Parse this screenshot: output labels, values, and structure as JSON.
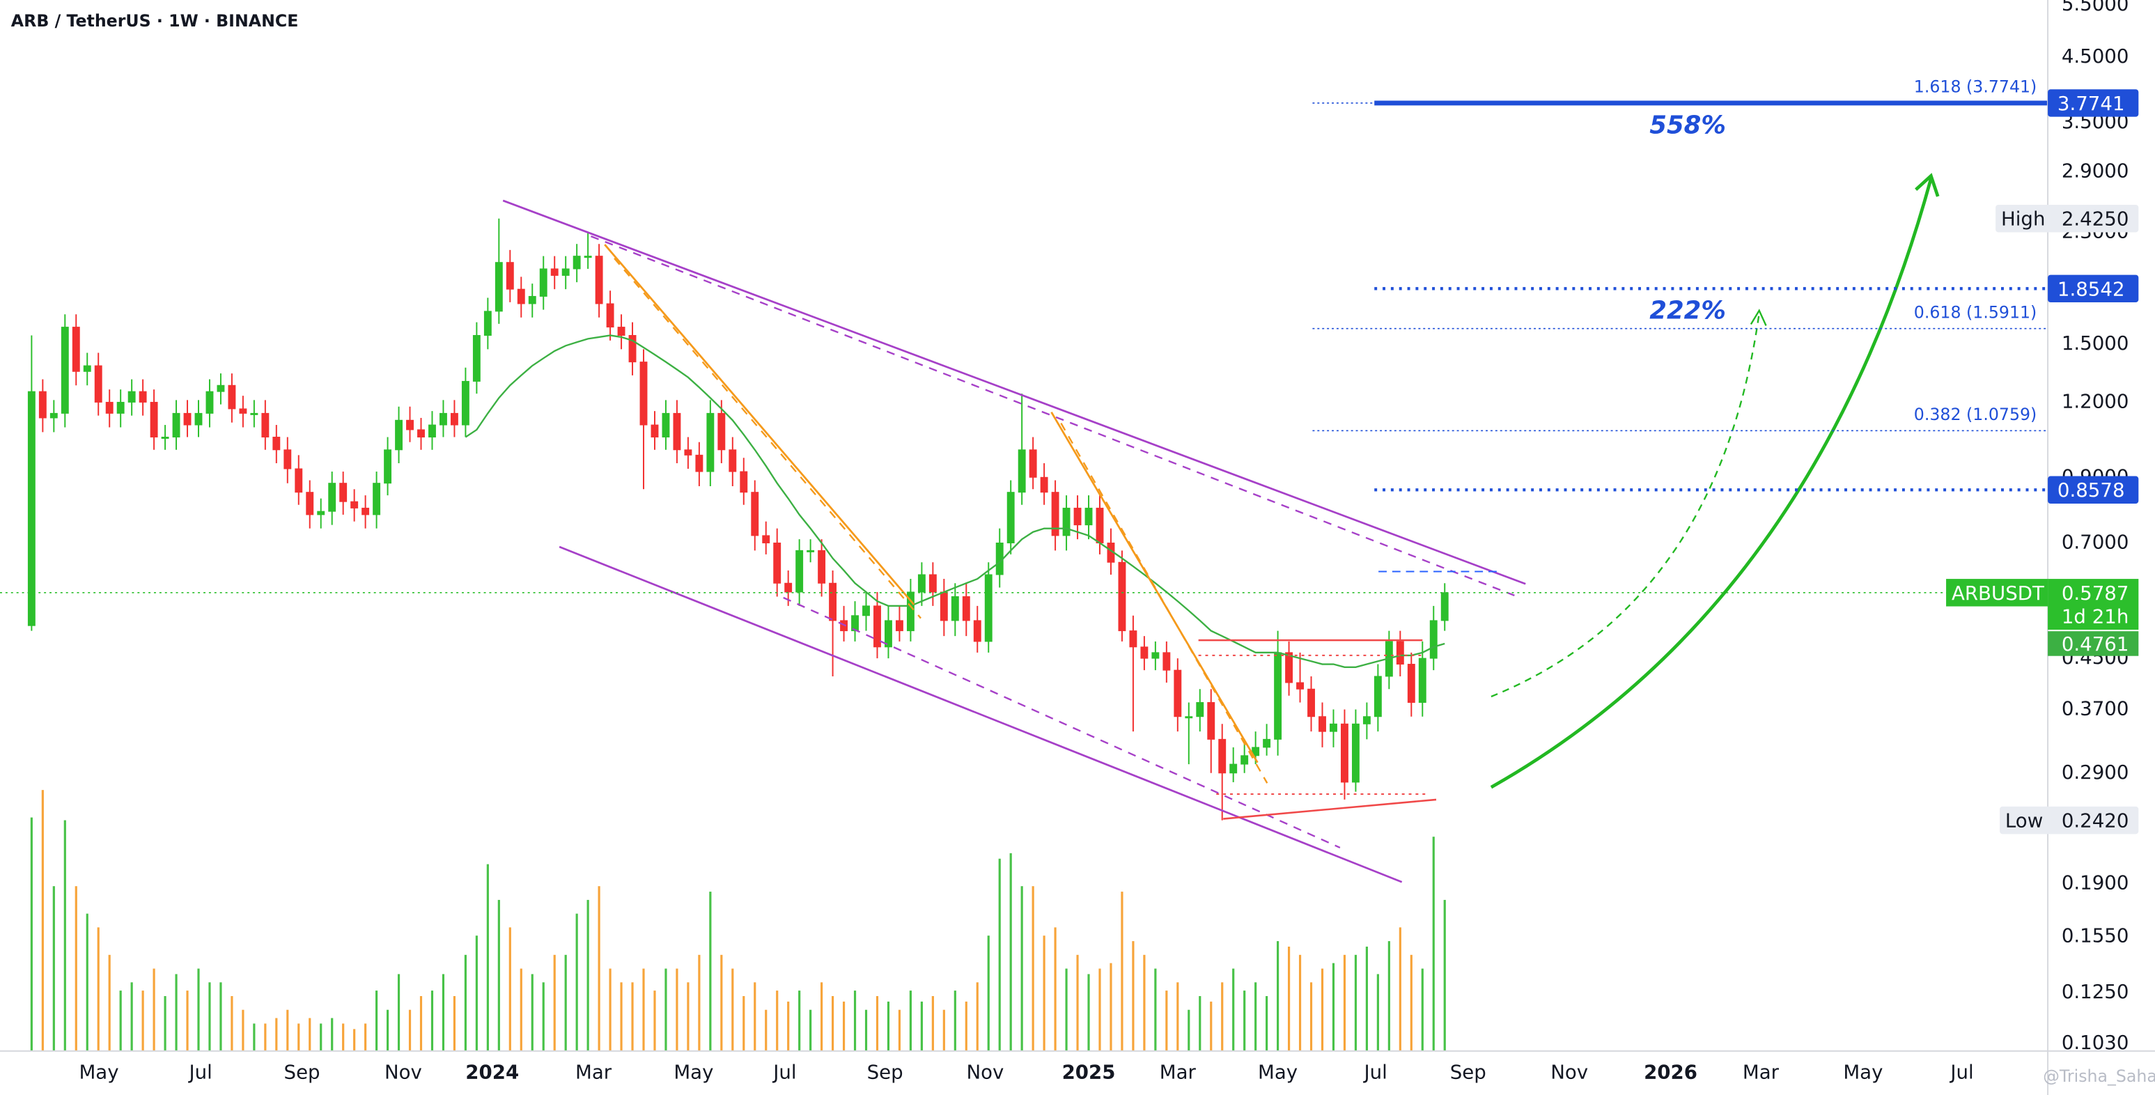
{
  "chart_data": {
    "type": "candlestick",
    "title": "ARB / TetherUS · 1W · BINANCE",
    "log_scale": true,
    "grid": false,
    "up_color": "#2cbf2c",
    "down_color": "#f23030",
    "volume_up_color": "#48c248",
    "volume_down_color": "#f7a43a",
    "ma_color": "#3cb043",
    "level_color": "#1f4fd8",
    "xlim": [
      -2.84,
      181.2
    ],
    "ylim": [
      0.1,
      5.6
    ],
    "volume_lim": [
      0,
      100
    ],
    "xticks": [
      {
        "value": 6.05,
        "label": "May"
      },
      {
        "value": 15.2,
        "label": "Jul"
      },
      {
        "value": 24.3,
        "label": "Sep"
      },
      {
        "value": 33.4,
        "label": "Nov"
      },
      {
        "value": 41.4,
        "label": "2024"
      },
      {
        "value": 50.5,
        "label": "Mar"
      },
      {
        "value": 59.5,
        "label": "May"
      },
      {
        "value": 67.7,
        "label": "Jul"
      },
      {
        "value": 76.7,
        "label": "Sep"
      },
      {
        "value": 85.7,
        "label": "Nov"
      },
      {
        "value": 95.0,
        "label": "2025"
      },
      {
        "value": 103.0,
        "label": "Mar"
      },
      {
        "value": 112.0,
        "label": "May"
      },
      {
        "value": 120.8,
        "label": "Jul"
      },
      {
        "value": 129.1,
        "label": "Sep"
      },
      {
        "value": 138.2,
        "label": "Nov"
      },
      {
        "value": 147.3,
        "label": "2026"
      },
      {
        "value": 155.4,
        "label": "Mar"
      },
      {
        "value": 164.6,
        "label": "May"
      },
      {
        "value": 173.5,
        "label": "Jul"
      }
    ],
    "yticks": [
      {
        "value": 5.5,
        "label": "5.5000"
      },
      {
        "value": 4.5,
        "label": "4.5000"
      },
      {
        "value": 3.5,
        "label": "3.5000"
      },
      {
        "value": 2.9,
        "label": "2.9000"
      },
      {
        "value": 2.3,
        "label": "2.3000"
      },
      {
        "value": 1.5,
        "label": "1.5000"
      },
      {
        "value": 1.2,
        "label": "1.2000"
      },
      {
        "value": 0.9,
        "label": "0.9000"
      },
      {
        "value": 0.7,
        "label": "0.7000"
      },
      {
        "value": 0.45,
        "label": "0.4500"
      },
      {
        "value": 0.37,
        "label": "0.3700"
      },
      {
        "value": 0.29,
        "label": "0.2900"
      },
      {
        "value": 0.19,
        "label": "0.1900"
      },
      {
        "value": 0.155,
        "label": "0.1550"
      },
      {
        "value": 0.125,
        "label": "0.1250"
      },
      {
        "value": 0.103,
        "label": "0.1030"
      }
    ],
    "candles": [
      [
        0.51,
        1.55,
        0.5,
        1.25
      ],
      [
        1.25,
        1.31,
        1.07,
        1.13
      ],
      [
        1.13,
        1.21,
        1.07,
        1.15
      ],
      [
        1.15,
        1.68,
        1.09,
        1.6
      ],
      [
        1.6,
        1.68,
        1.28,
        1.35
      ],
      [
        1.35,
        1.45,
        1.28,
        1.38
      ],
      [
        1.38,
        1.45,
        1.14,
        1.2
      ],
      [
        1.2,
        1.26,
        1.09,
        1.15
      ],
      [
        1.15,
        1.26,
        1.09,
        1.2
      ],
      [
        1.2,
        1.31,
        1.14,
        1.25
      ],
      [
        1.25,
        1.31,
        1.14,
        1.2
      ],
      [
        1.2,
        1.26,
        1.0,
        1.05
      ],
      [
        1.05,
        1.1,
        1.0,
        1.05
      ],
      [
        1.05,
        1.21,
        1.0,
        1.15
      ],
      [
        1.15,
        1.21,
        1.05,
        1.1
      ],
      [
        1.1,
        1.21,
        1.05,
        1.15
      ],
      [
        1.15,
        1.31,
        1.09,
        1.25
      ],
      [
        1.25,
        1.34,
        1.19,
        1.28
      ],
      [
        1.28,
        1.34,
        1.11,
        1.17
      ],
      [
        1.17,
        1.23,
        1.09,
        1.15
      ],
      [
        1.15,
        1.21,
        1.09,
        1.15
      ],
      [
        1.15,
        1.21,
        1.0,
        1.05
      ],
      [
        1.05,
        1.1,
        0.95,
        1.0
      ],
      [
        1.0,
        1.05,
        0.88,
        0.93
      ],
      [
        0.93,
        0.98,
        0.81,
        0.85
      ],
      [
        0.85,
        0.89,
        0.74,
        0.78
      ],
      [
        0.78,
        0.83,
        0.74,
        0.79
      ],
      [
        0.79,
        0.92,
        0.75,
        0.88
      ],
      [
        0.88,
        0.92,
        0.78,
        0.82
      ],
      [
        0.82,
        0.86,
        0.76,
        0.8
      ],
      [
        0.8,
        0.84,
        0.74,
        0.78
      ],
      [
        0.78,
        0.92,
        0.74,
        0.88
      ],
      [
        0.88,
        1.05,
        0.84,
        1.0
      ],
      [
        1.0,
        1.18,
        0.95,
        1.12
      ],
      [
        1.12,
        1.18,
        1.03,
        1.08
      ],
      [
        1.08,
        1.13,
        1.0,
        1.05
      ],
      [
        1.05,
        1.16,
        1.0,
        1.1
      ],
      [
        1.1,
        1.21,
        1.05,
        1.15
      ],
      [
        1.15,
        1.21,
        1.05,
        1.1
      ],
      [
        1.1,
        1.37,
        1.05,
        1.3
      ],
      [
        1.3,
        1.63,
        1.24,
        1.55
      ],
      [
        1.55,
        1.79,
        1.47,
        1.7
      ],
      [
        1.7,
        2.425,
        1.62,
        2.05
      ],
      [
        2.05,
        2.15,
        1.76,
        1.85
      ],
      [
        1.85,
        1.94,
        1.66,
        1.75
      ],
      [
        1.75,
        1.89,
        1.66,
        1.8
      ],
      [
        1.8,
        2.1,
        1.71,
        2.0
      ],
      [
        2.0,
        2.1,
        1.85,
        1.95
      ],
      [
        1.95,
        2.1,
        1.85,
        2.0
      ],
      [
        2.0,
        2.2,
        1.9,
        2.1
      ],
      [
        2.1,
        2.3,
        2.0,
        2.1
      ],
      [
        2.1,
        2.2,
        1.66,
        1.75
      ],
      [
        1.75,
        1.84,
        1.52,
        1.6
      ],
      [
        1.6,
        1.68,
        1.47,
        1.55
      ],
      [
        1.55,
        1.63,
        1.33,
        1.4
      ],
      [
        1.4,
        1.47,
        0.86,
        1.1
      ],
      [
        1.1,
        1.16,
        1.0,
        1.05
      ],
      [
        1.05,
        1.21,
        1.0,
        1.15
      ],
      [
        1.15,
        1.21,
        0.95,
        1.0
      ],
      [
        1.0,
        1.05,
        0.93,
        0.98
      ],
      [
        0.98,
        1.03,
        0.87,
        0.92
      ],
      [
        0.92,
        1.21,
        0.87,
        1.15
      ],
      [
        1.15,
        1.21,
        0.95,
        1.0
      ],
      [
        1.0,
        1.05,
        0.87,
        0.92
      ],
      [
        0.92,
        0.97,
        0.81,
        0.85
      ],
      [
        0.85,
        0.89,
        0.68,
        0.72
      ],
      [
        0.72,
        0.76,
        0.67,
        0.7
      ],
      [
        0.7,
        0.74,
        0.57,
        0.6
      ],
      [
        0.6,
        0.63,
        0.55,
        0.58
      ],
      [
        0.58,
        0.71,
        0.55,
        0.68
      ],
      [
        0.68,
        0.71,
        0.65,
        0.68
      ],
      [
        0.68,
        0.71,
        0.57,
        0.6
      ],
      [
        0.6,
        0.63,
        0.42,
        0.52
      ],
      [
        0.52,
        0.55,
        0.48,
        0.5
      ],
      [
        0.5,
        0.56,
        0.48,
        0.53
      ],
      [
        0.53,
        0.58,
        0.5,
        0.55
      ],
      [
        0.55,
        0.58,
        0.45,
        0.47
      ],
      [
        0.47,
        0.55,
        0.45,
        0.52
      ],
      [
        0.52,
        0.55,
        0.48,
        0.5
      ],
      [
        0.5,
        0.61,
        0.48,
        0.58
      ],
      [
        0.58,
        0.65,
        0.55,
        0.62
      ],
      [
        0.62,
        0.65,
        0.55,
        0.58
      ],
      [
        0.58,
        0.61,
        0.49,
        0.52
      ],
      [
        0.52,
        0.6,
        0.49,
        0.57
      ],
      [
        0.57,
        0.6,
        0.49,
        0.52
      ],
      [
        0.52,
        0.55,
        0.46,
        0.48
      ],
      [
        0.48,
        0.65,
        0.46,
        0.62
      ],
      [
        0.62,
        0.74,
        0.59,
        0.7
      ],
      [
        0.7,
        0.89,
        0.67,
        0.85
      ],
      [
        0.85,
        1.24,
        0.81,
        1.0
      ],
      [
        1.0,
        1.05,
        0.86,
        0.9
      ],
      [
        0.9,
        0.95,
        0.81,
        0.85
      ],
      [
        0.85,
        0.89,
        0.68,
        0.72
      ],
      [
        0.72,
        0.84,
        0.68,
        0.8
      ],
      [
        0.8,
        0.84,
        0.71,
        0.75
      ],
      [
        0.75,
        0.84,
        0.71,
        0.8
      ],
      [
        0.8,
        0.84,
        0.67,
        0.7
      ],
      [
        0.7,
        0.74,
        0.62,
        0.65
      ],
      [
        0.65,
        0.68,
        0.48,
        0.5
      ],
      [
        0.5,
        0.53,
        0.34,
        0.47
      ],
      [
        0.47,
        0.49,
        0.43,
        0.45
      ],
      [
        0.45,
        0.48,
        0.43,
        0.46
      ],
      [
        0.46,
        0.48,
        0.41,
        0.43
      ],
      [
        0.43,
        0.45,
        0.34,
        0.36
      ],
      [
        0.36,
        0.38,
        0.3,
        0.36
      ],
      [
        0.36,
        0.4,
        0.34,
        0.38
      ],
      [
        0.38,
        0.4,
        0.29,
        0.33
      ],
      [
        0.33,
        0.35,
        0.242,
        0.29
      ],
      [
        0.29,
        0.32,
        0.28,
        0.3
      ],
      [
        0.3,
        0.33,
        0.29,
        0.31
      ],
      [
        0.31,
        0.34,
        0.3,
        0.32
      ],
      [
        0.32,
        0.35,
        0.31,
        0.33
      ],
      [
        0.33,
        0.5,
        0.31,
        0.46
      ],
      [
        0.46,
        0.48,
        0.39,
        0.41
      ],
      [
        0.41,
        0.46,
        0.38,
        0.4
      ],
      [
        0.4,
        0.42,
        0.34,
        0.36
      ],
      [
        0.36,
        0.38,
        0.32,
        0.34
      ],
      [
        0.34,
        0.37,
        0.32,
        0.35
      ],
      [
        0.35,
        0.37,
        0.262,
        0.28
      ],
      [
        0.28,
        0.37,
        0.27,
        0.35
      ],
      [
        0.35,
        0.38,
        0.33,
        0.36
      ],
      [
        0.36,
        0.44,
        0.34,
        0.42
      ],
      [
        0.42,
        0.5,
        0.4,
        0.48
      ],
      [
        0.48,
        0.5,
        0.42,
        0.44
      ],
      [
        0.44,
        0.46,
        0.36,
        0.38
      ],
      [
        0.38,
        0.48,
        0.36,
        0.45
      ],
      [
        0.45,
        0.55,
        0.43,
        0.52
      ],
      [
        0.52,
        0.6,
        0.5,
        0.5787
      ]
    ],
    "ma": [
      null,
      null,
      null,
      null,
      null,
      null,
      null,
      null,
      null,
      null,
      null,
      null,
      null,
      null,
      null,
      null,
      null,
      null,
      null,
      null,
      null,
      null,
      null,
      null,
      null,
      null,
      null,
      null,
      null,
      null,
      null,
      null,
      null,
      null,
      null,
      null,
      null,
      null,
      null,
      1.05,
      1.08,
      1.15,
      1.22,
      1.28,
      1.33,
      1.38,
      1.42,
      1.46,
      1.49,
      1.51,
      1.53,
      1.54,
      1.55,
      1.54,
      1.52,
      1.48,
      1.44,
      1.4,
      1.36,
      1.32,
      1.27,
      1.22,
      1.17,
      1.12,
      1.06,
      1.0,
      0.94,
      0.88,
      0.83,
      0.78,
      0.74,
      0.7,
      0.66,
      0.63,
      0.6,
      0.58,
      0.56,
      0.55,
      0.55,
      0.55,
      0.56,
      0.57,
      0.58,
      0.59,
      0.6,
      0.61,
      0.63,
      0.65,
      0.68,
      0.71,
      0.73,
      0.74,
      0.74,
      0.74,
      0.73,
      0.72,
      0.7,
      0.68,
      0.66,
      0.64,
      0.62,
      0.6,
      0.58,
      0.56,
      0.54,
      0.52,
      0.5,
      0.49,
      0.48,
      0.47,
      0.46,
      0.46,
      0.46,
      0.455,
      0.45,
      0.445,
      0.44,
      0.44,
      0.435,
      0.435,
      0.44,
      0.445,
      0.45,
      0.455,
      0.455,
      0.46,
      0.47,
      0.4761
    ],
    "volume": [
      85,
      95,
      60,
      84,
      60,
      50,
      45,
      35,
      22,
      25,
      22,
      30,
      20,
      28,
      22,
      30,
      25,
      25,
      20,
      15,
      10,
      10,
      12,
      15,
      10,
      12,
      10,
      12,
      10,
      8,
      10,
      22,
      15,
      28,
      15,
      20,
      22,
      28,
      20,
      35,
      42,
      68,
      55,
      45,
      30,
      28,
      25,
      35,
      35,
      50,
      55,
      60,
      30,
      25,
      25,
      30,
      22,
      30,
      30,
      25,
      35,
      58,
      35,
      30,
      20,
      25,
      15,
      22,
      18,
      22,
      15,
      25,
      20,
      18,
      22,
      15,
      20,
      18,
      15,
      22,
      18,
      20,
      15,
      22,
      18,
      25,
      42,
      70,
      72,
      60,
      60,
      42,
      45,
      30,
      35,
      28,
      30,
      32,
      58,
      40,
      35,
      30,
      22,
      25,
      15,
      20,
      18,
      25,
      30,
      22,
      25,
      20,
      40,
      38,
      35,
      25,
      30,
      32,
      35,
      35,
      38,
      28,
      40,
      45,
      35,
      30,
      78,
      55
    ],
    "levels": [
      {
        "name": "1.618 (3.7741)",
        "value": 3.7741,
        "style": "solid",
        "axis_tag": true
      },
      {
        "value": 1.8542,
        "style": "dotted-bold",
        "axis_tag": true
      },
      {
        "name": "0.618 (1.5911)",
        "value": 1.5911,
        "style": "dotted",
        "axis_tag": false
      },
      {
        "name": "0.382 (1.0759)",
        "value": 1.0759,
        "style": "dotted",
        "axis_tag": false
      },
      {
        "value": 0.8578,
        "style": "dotted-bold",
        "axis_tag": true
      }
    ],
    "annotations": [
      "558%",
      "222%"
    ],
    "high": {
      "name": "High",
      "value": 2.425,
      "label": "2.4250"
    },
    "low": {
      "name": "Low",
      "value": 0.242,
      "label": "0.2420"
    },
    "last": {
      "name": "ARBUSDT",
      "value": 0.5787,
      "countdown": "1d 21h"
    },
    "watermark": "@Trisha_Saha"
  }
}
